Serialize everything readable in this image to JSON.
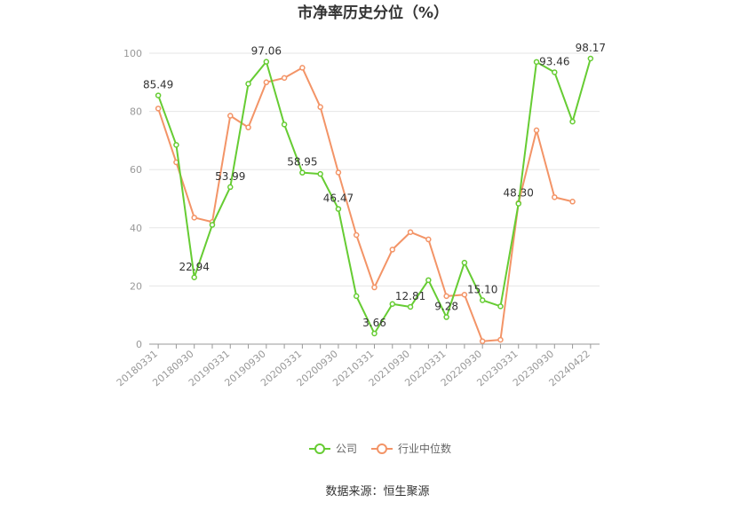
{
  "chart_data": {
    "type": "line",
    "title": "市净率历史分位（%）",
    "source": "数据来源：恒生聚源",
    "ylim": [
      0,
      100
    ],
    "yticks": [
      0,
      20,
      40,
      60,
      80,
      100
    ],
    "x_tick_labels": [
      "20180331",
      "20180930",
      "20190331",
      "20190930",
      "20200331",
      "20200930",
      "20210331",
      "20210930",
      "20220331",
      "20220930",
      "20230331",
      "20230930",
      "20240422"
    ],
    "x": [
      "20180331",
      "20180630",
      "20180930",
      "20181231",
      "20190331",
      "20190630",
      "20190930",
      "20191231",
      "20200331",
      "20200630",
      "20200930",
      "20201231",
      "20210331",
      "20210630",
      "20210930",
      "20211231",
      "20220331",
      "20220630",
      "20220930",
      "20221231",
      "20230331",
      "20230630",
      "20230930",
      "20231231",
      "20240422"
    ],
    "series": [
      {
        "name": "公司",
        "color": "#66cc33",
        "values": [
          85.49,
          68.5,
          22.94,
          41.0,
          53.99,
          89.5,
          97.06,
          75.5,
          58.95,
          58.5,
          46.47,
          16.5,
          3.66,
          13.8,
          12.81,
          22.0,
          9.28,
          28.0,
          15.1,
          13.0,
          48.3,
          97.0,
          93.46,
          76.5,
          98.17
        ],
        "labels": {
          "0": "85.49",
          "2": "22.94",
          "4": "53.99",
          "6": "97.06",
          "8": "58.95",
          "10": "46.47",
          "12": "3.66",
          "14": "12.81",
          "16": "9.28",
          "18": "15.10",
          "20": "48.30",
          "22": "93.46",
          "24": "98.17"
        }
      },
      {
        "name": "行业中位数",
        "color": "#f39467",
        "values": [
          81.0,
          62.5,
          43.5,
          42.0,
          78.5,
          74.5,
          90.0,
          91.5,
          95.0,
          81.5,
          59.0,
          37.5,
          19.5,
          32.5,
          38.5,
          36.0,
          16.5,
          17.0,
          1.0,
          1.5,
          48.5,
          73.5,
          50.5,
          49.0,
          null
        ],
        "labels": {}
      }
    ],
    "legend_position": "bottom-center",
    "grid": true
  }
}
